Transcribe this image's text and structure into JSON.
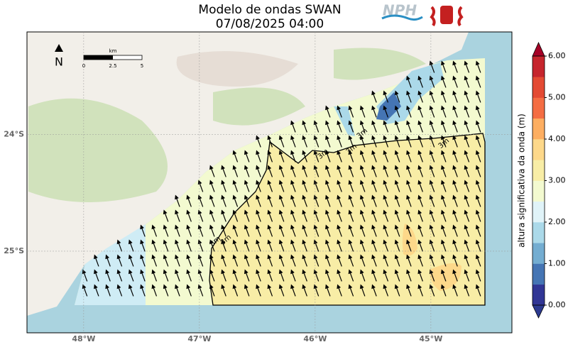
{
  "header": {
    "title_line1": "Modelo de ondas SWAN",
    "title_line2": "07/08/2025 04:00",
    "logo_text": "NPH"
  },
  "map": {
    "lonlim": [
      -48.49,
      -44.3
    ],
    "latlim": [
      -25.7,
      -23.12
    ],
    "xticks": [
      {
        "value": -48,
        "label": "48°W"
      },
      {
        "value": -47,
        "label": "47°W"
      },
      {
        "value": -46,
        "label": "46°W"
      },
      {
        "value": -45,
        "label": "45°W"
      }
    ],
    "yticks": [
      {
        "value": -24,
        "label": "24°S"
      },
      {
        "value": -25,
        "label": "25°S"
      }
    ],
    "grid": true,
    "north_label": "N",
    "scale": {
      "unit": "km",
      "lim": [
        0,
        5
      ],
      "ticks": [
        0,
        2.5,
        5
      ]
    },
    "contour_labels": [
      "3m",
      "3m",
      "3m",
      "3m",
      "3m",
      "3m"
    ]
  },
  "colorbar": {
    "label": "altura significativa da onda (m)",
    "lim": [
      0,
      6
    ],
    "levels": [
      0,
      0.5,
      1,
      1.5,
      2,
      2.5,
      3,
      3.5,
      4,
      4.5,
      5,
      5.5,
      6
    ],
    "colors": [
      "#313695",
      "#4575b4",
      "#74add1",
      "#abd9e9",
      "#e0f3f8",
      "#f3fad0",
      "#f8eda6",
      "#fdd88a",
      "#fdae61",
      "#f46d43",
      "#e34a33",
      "#c6252d"
    ],
    "under_color": "#2c3a90",
    "over_color": "#a50026",
    "ticks": [
      {
        "value": 0,
        "label": "0.00"
      },
      {
        "value": 1,
        "label": "1.00"
      },
      {
        "value": 2,
        "label": "2.00"
      },
      {
        "value": 3,
        "label": "3.00"
      },
      {
        "value": 4,
        "label": "4.00"
      },
      {
        "value": 5,
        "label": "5.00"
      },
      {
        "value": 6,
        "label": "6.00"
      }
    ]
  }
}
